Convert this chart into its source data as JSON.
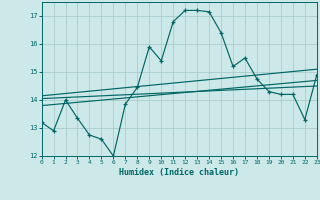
{
  "xlabel": "Humidex (Indice chaleur)",
  "background_color": "#cce8e8",
  "grid_color": "#aacccc",
  "line_color": "#006666",
  "x_min": 0,
  "x_max": 23,
  "y_min": 12,
  "y_max": 17.5,
  "main_x": [
    0,
    1,
    2,
    3,
    4,
    5,
    6,
    7,
    8,
    9,
    10,
    11,
    12,
    13,
    14,
    15,
    16,
    17,
    18,
    19,
    20,
    21,
    22,
    23
  ],
  "main_y": [
    13.2,
    12.9,
    14.0,
    13.35,
    12.75,
    12.6,
    12.0,
    13.85,
    14.45,
    15.9,
    15.4,
    16.8,
    17.2,
    17.2,
    17.15,
    16.4,
    15.2,
    15.5,
    14.75,
    14.3,
    14.2,
    14.2,
    13.3,
    14.9
  ],
  "line2_x": [
    0,
    23
  ],
  "line2_y": [
    13.8,
    14.7
  ],
  "line3_x": [
    0,
    23
  ],
  "line3_y": [
    14.05,
    14.5
  ],
  "line4_x": [
    0,
    23
  ],
  "line4_y": [
    14.15,
    15.1
  ],
  "yticks": [
    12,
    13,
    14,
    15,
    16,
    17
  ],
  "xticks": [
    0,
    1,
    2,
    3,
    4,
    5,
    6,
    7,
    8,
    9,
    10,
    11,
    12,
    13,
    14,
    15,
    16,
    17,
    18,
    19,
    20,
    21,
    22,
    23
  ]
}
